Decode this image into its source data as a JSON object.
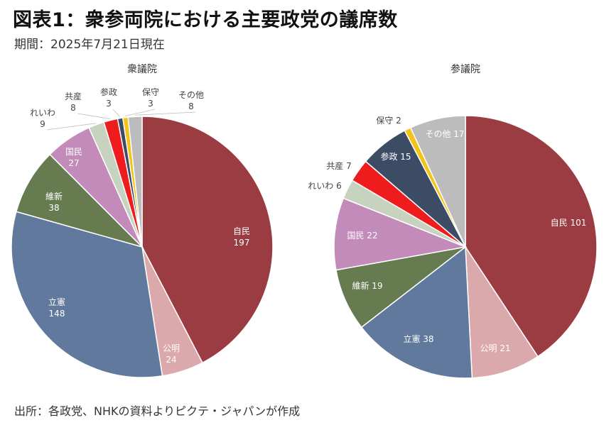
{
  "header": {
    "title": "図表1：衆参両院における主要政党の議席数",
    "subtitle": "期間：2025年7月21日現在"
  },
  "footer": {
    "source": "出所：各政党、NHKの資料よりピクテ・ジャパンが作成"
  },
  "colors": {
    "自民": "#9b3b42",
    "公明": "#dba8ab",
    "立憲": "#60799c",
    "維新": "#677b50",
    "国民": "#c28bba",
    "れいわ": "#c7d3bf",
    "共産": "#ee1c1c",
    "参政": "#3d4c65",
    "保守": "#f2c318",
    "その他": "#bcbcbc"
  },
  "chart_data": [
    {
      "type": "pie",
      "title": "衆議院",
      "slices": [
        {
          "name": "自民",
          "value": 197,
          "label": "197"
        },
        {
          "name": "公明",
          "value": 24,
          "label": "24"
        },
        {
          "name": "立憲",
          "value": 148,
          "label": "148"
        },
        {
          "name": "維新",
          "value": 38,
          "label": "38"
        },
        {
          "name": "国民",
          "value": 27,
          "label": "27"
        },
        {
          "name": "れいわ",
          "value": 9,
          "label": "9"
        },
        {
          "name": "共産",
          "value": 8,
          "label": "8"
        },
        {
          "name": "参政",
          "value": 3,
          "label": "3"
        },
        {
          "name": "保守",
          "value": 3,
          "label": "3"
        },
        {
          "name": "その他",
          "value": 8,
          "label": "8"
        }
      ]
    },
    {
      "type": "pie",
      "title": "参議院",
      "slices": [
        {
          "name": "自民",
          "value": 101,
          "label": "101"
        },
        {
          "name": "公明",
          "value": 21,
          "label": "21"
        },
        {
          "name": "立憲",
          "value": 38,
          "label": "38"
        },
        {
          "name": "維新",
          "value": 19,
          "label": "19"
        },
        {
          "name": "国民",
          "value": 22,
          "label": "22"
        },
        {
          "name": "れいわ",
          "value": 6,
          "label": "6"
        },
        {
          "name": "共産",
          "value": 7,
          "label": "7"
        },
        {
          "name": "参政",
          "value": 15,
          "label": "15"
        },
        {
          "name": "保守",
          "value": 2,
          "label": "2"
        },
        {
          "name": "その他",
          "value": 17,
          "label": "17"
        }
      ]
    }
  ]
}
